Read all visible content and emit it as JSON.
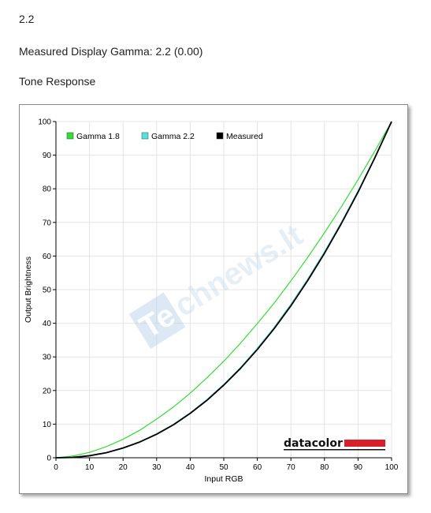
{
  "header": {
    "gamma_value": "2.2",
    "measured_line": "Measured Display Gamma: 2.2 (0.00)",
    "section_title": "Tone Response"
  },
  "watermark": {
    "text": "chnews.lt",
    "box_text": "Te"
  },
  "logo": {
    "text": "datacolor",
    "bar_color": "#d9202a"
  },
  "chart_data": {
    "type": "line",
    "title": "Tone Response",
    "xlabel": "Input RGB",
    "ylabel": "Output Brightness",
    "xlim": [
      0,
      100
    ],
    "ylim": [
      0,
      100
    ],
    "xticks": [
      0,
      10,
      20,
      30,
      40,
      50,
      60,
      70,
      80,
      90,
      100
    ],
    "yticks": [
      0,
      10,
      20,
      30,
      40,
      50,
      60,
      70,
      80,
      90,
      100
    ],
    "grid": true,
    "legend_position": "top-left",
    "x": [
      0,
      5,
      10,
      15,
      20,
      25,
      30,
      35,
      40,
      45,
      50,
      55,
      60,
      65,
      70,
      75,
      80,
      85,
      90,
      95,
      100
    ],
    "series": [
      {
        "name": "Gamma 1.8",
        "color": "#33dd33",
        "values": [
          0,
          0.5,
          1.6,
          3.3,
          5.5,
          8.2,
          11.5,
          15.1,
          19.2,
          23.8,
          28.7,
          34.1,
          39.9,
          46.0,
          52.6,
          59.6,
          66.9,
          74.6,
          82.7,
          91.2,
          100
        ]
      },
      {
        "name": "Gamma 2.2",
        "color": "#55e0e0",
        "values": [
          0,
          0.1,
          0.6,
          1.5,
          2.9,
          4.7,
          7.1,
          9.9,
          13.3,
          17.3,
          21.8,
          26.8,
          32.5,
          38.7,
          45.6,
          53.1,
          61.2,
          69.9,
          79.3,
          89.3,
          100
        ]
      },
      {
        "name": "Measured",
        "color": "#000000",
        "values": [
          0,
          0.1,
          0.6,
          1.5,
          2.9,
          4.7,
          7.0,
          9.8,
          13.2,
          17.1,
          21.6,
          26.6,
          32.2,
          38.4,
          45.2,
          52.7,
          60.8,
          69.6,
          79.0,
          89.2,
          100
        ]
      }
    ]
  }
}
